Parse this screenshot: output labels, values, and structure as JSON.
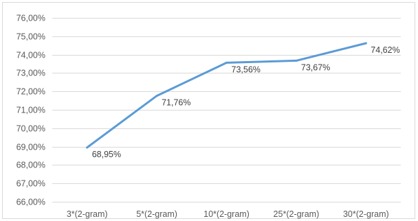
{
  "chart_data": {
    "type": "line",
    "categories": [
      "3*(2-gram)",
      "5*(2-gram)",
      "10*(2-gram)",
      "25*(2-gram)",
      "30*(2-gram)"
    ],
    "series": [
      {
        "values": [
          68.95,
          71.76,
          73.56,
          73.67,
          74.62
        ],
        "labels": [
          "68,95%",
          "71,76%",
          "73,56%",
          "73,67%",
          "74,62%"
        ],
        "color": "#5b9bd5"
      }
    ],
    "ylim": [
      66,
      76
    ],
    "yticks": [
      "66,00%",
      "67,00%",
      "68,00%",
      "69,00%",
      "70,00%",
      "71,00%",
      "72,00%",
      "73,00%",
      "74,00%",
      "75,00%",
      "76,00%"
    ],
    "ytick_values": [
      66,
      67,
      68,
      69,
      70,
      71,
      72,
      73,
      74,
      75,
      76
    ],
    "grid": true,
    "gridline_color": "#d9d9d9",
    "legend": "none"
  }
}
